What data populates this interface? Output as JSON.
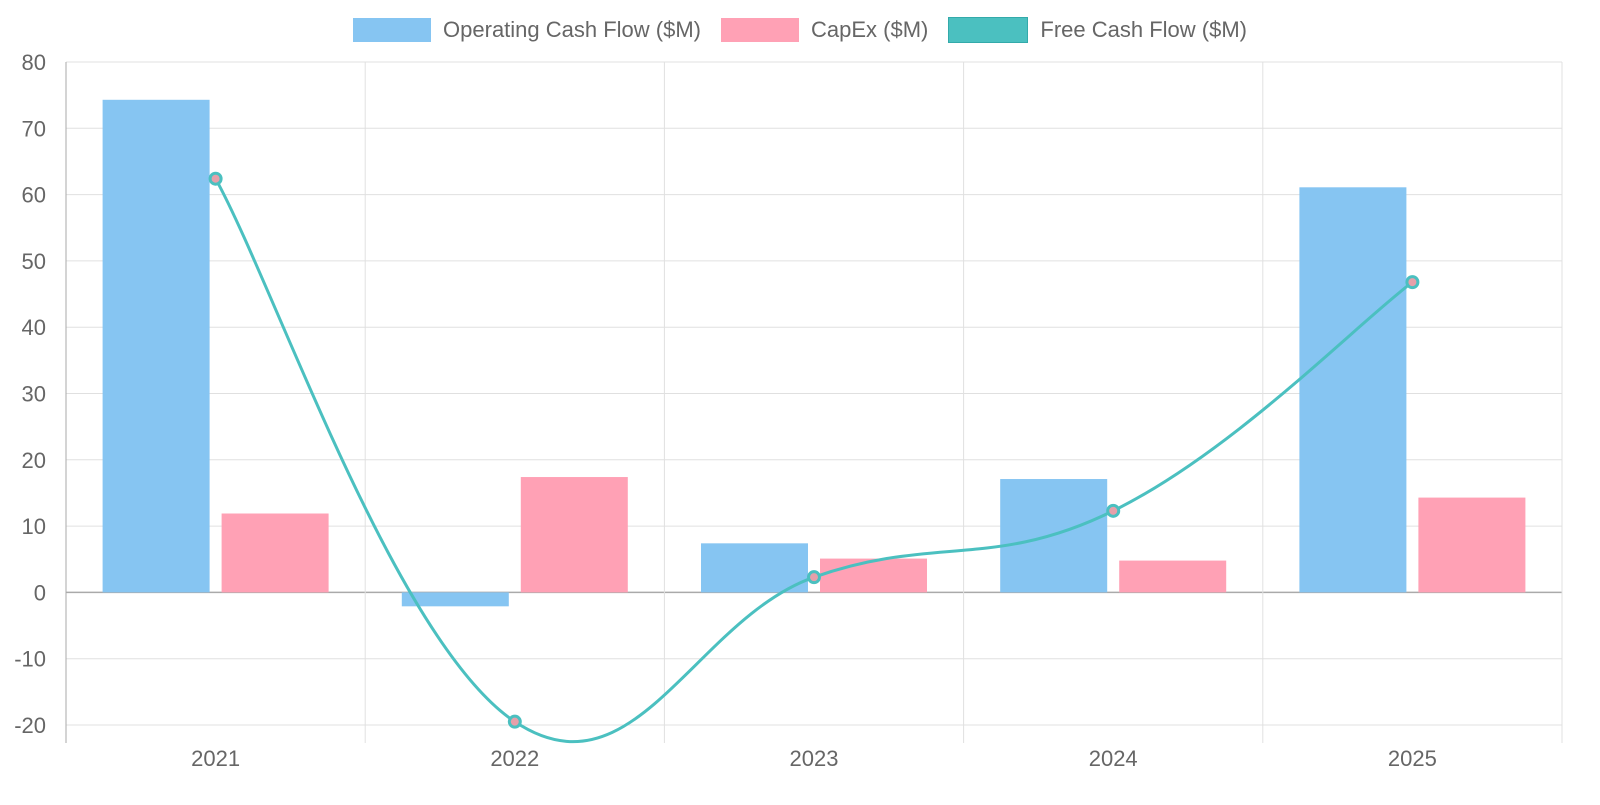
{
  "chart_data": {
    "type": "bar",
    "categories": [
      "2021",
      "2022",
      "2023",
      "2024",
      "2025"
    ],
    "series": [
      {
        "name": "Operating Cash Flow ($M)",
        "type": "bar",
        "color": "#86c5f2",
        "values": [
          74.3,
          -2.1,
          7.4,
          17.1,
          61.1
        ]
      },
      {
        "name": "CapEx ($M)",
        "type": "bar",
        "color": "#ffa1b5",
        "values": [
          11.9,
          17.4,
          5.1,
          4.8,
          14.3
        ]
      },
      {
        "name": "Free Cash Flow ($M)",
        "type": "line",
        "color": "#4bc0c0",
        "values": [
          62.4,
          -19.5,
          2.3,
          12.3,
          46.8
        ]
      }
    ],
    "ylim": [
      -20,
      80
    ],
    "yticks": [
      -20,
      -10,
      0,
      10,
      20,
      30,
      40,
      50,
      60,
      70,
      80
    ],
    "grid": true,
    "legend": "top-center",
    "title": "",
    "xlabel": "",
    "ylabel": ""
  }
}
